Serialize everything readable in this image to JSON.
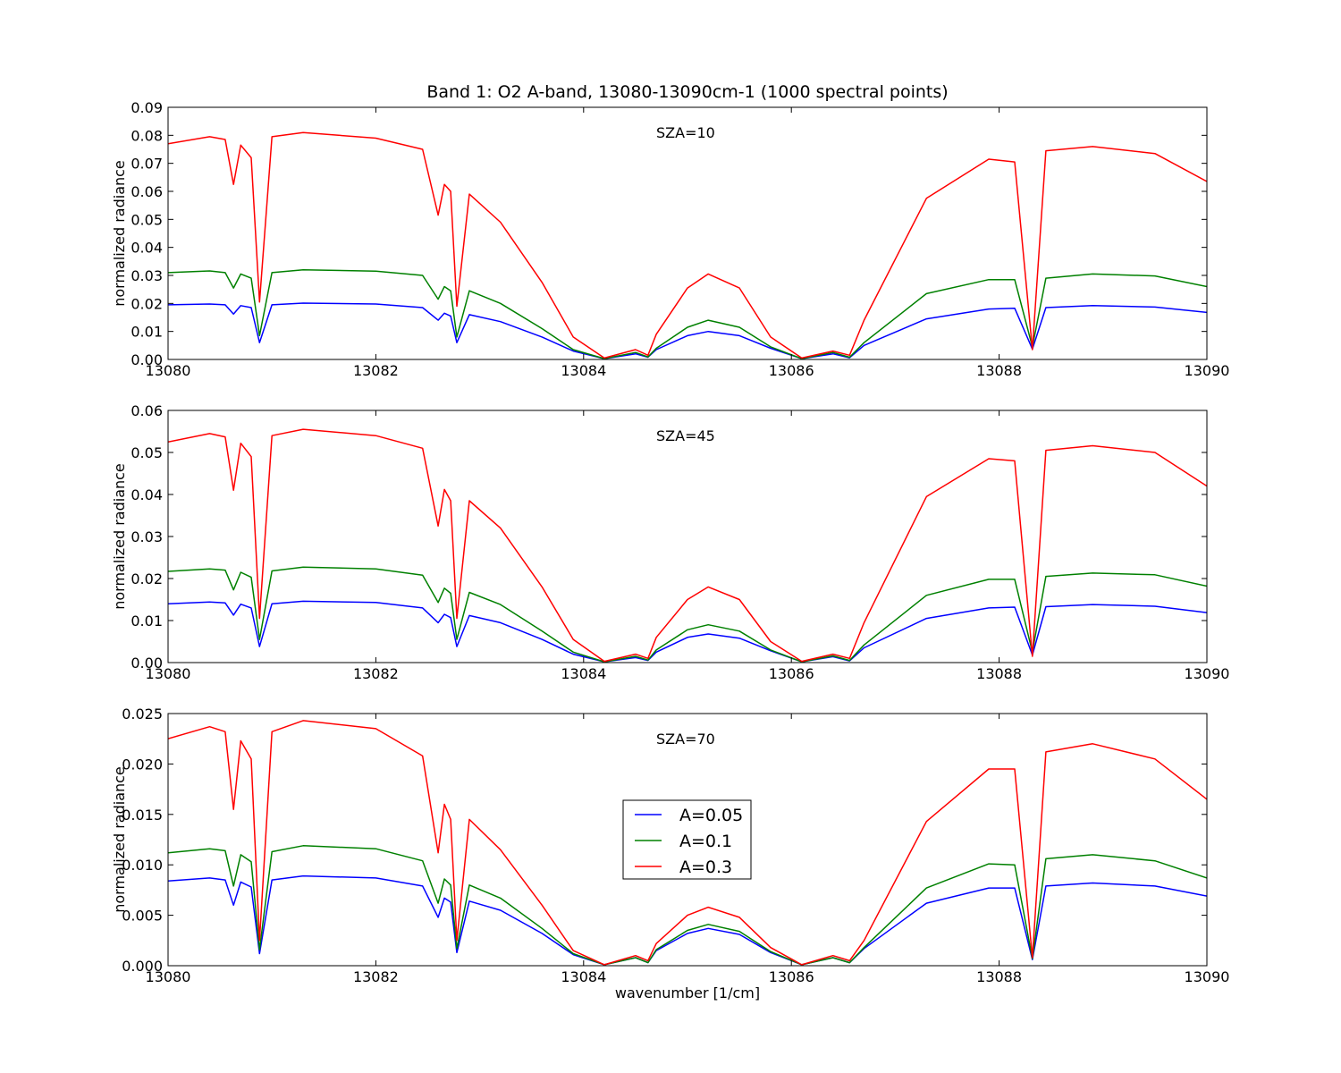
{
  "figure": {
    "title": "Band 1: O2 A-band, 13080-13090cm-1 (1000 spectral points)",
    "xlabel": "wavenumber [1/cm]",
    "ylabel": "normalized radiance"
  },
  "legend": {
    "placement": "center (bottom panel)",
    "entries": [
      {
        "label": "A=0.05",
        "color": "#0000ff"
      },
      {
        "label": "A=0.1",
        "color": "#008000"
      },
      {
        "label": "A=0.3",
        "color": "#ff0000"
      }
    ]
  },
  "chart_data": [
    {
      "type": "line",
      "annotation": "SZA=10",
      "xlim": [
        13080,
        13090
      ],
      "ylim": [
        0,
        0.09
      ],
      "xticks": [
        "13080",
        "13082",
        "13084",
        "13086",
        "13088",
        "13090"
      ],
      "yticks": [
        "0.00",
        "0.01",
        "0.02",
        "0.03",
        "0.04",
        "0.05",
        "0.06",
        "0.07",
        "0.08",
        "0.09"
      ],
      "x": [
        13080,
        13080.4,
        13080.55,
        13080.63,
        13080.7,
        13080.8,
        13080.88,
        13081.0,
        13081.3,
        13082.0,
        13082.45,
        13082.6,
        13082.66,
        13082.72,
        13082.78,
        13082.9,
        13083.2,
        13083.6,
        13083.9,
        13084.2,
        13084.5,
        13084.62,
        13084.7,
        13085.0,
        13085.2,
        13085.5,
        13085.8,
        13086.1,
        13086.4,
        13086.56,
        13086.7,
        13087.3,
        13087.9,
        13088.15,
        13088.32,
        13088.45,
        13088.9,
        13089.5,
        13090
      ],
      "series": [
        {
          "name": "A=0.05",
          "color": "#0000ff",
          "values": [
            0.0195,
            0.0198,
            0.0195,
            0.0162,
            0.0192,
            0.0185,
            0.006,
            0.0195,
            0.0201,
            0.0198,
            0.0185,
            0.014,
            0.0165,
            0.0155,
            0.006,
            0.016,
            0.0135,
            0.008,
            0.003,
            0.0003,
            0.002,
            0.0008,
            0.0035,
            0.0085,
            0.01,
            0.0085,
            0.004,
            0.0003,
            0.002,
            0.0006,
            0.005,
            0.0145,
            0.018,
            0.0183,
            0.0037,
            0.0185,
            0.0192,
            0.0187,
            0.0168
          ]
        },
        {
          "name": "A=0.1",
          "color": "#008000",
          "values": [
            0.031,
            0.0316,
            0.031,
            0.0255,
            0.0305,
            0.029,
            0.0085,
            0.031,
            0.032,
            0.0315,
            0.03,
            0.0215,
            0.026,
            0.0245,
            0.008,
            0.0245,
            0.02,
            0.011,
            0.0035,
            0.0003,
            0.0025,
            0.0009,
            0.004,
            0.0115,
            0.014,
            0.0115,
            0.0045,
            0.0003,
            0.0025,
            0.0008,
            0.006,
            0.0235,
            0.0285,
            0.0285,
            0.0045,
            0.029,
            0.0305,
            0.0298,
            0.026
          ]
        },
        {
          "name": "A=0.3",
          "color": "#ff0000",
          "values": [
            0.077,
            0.0795,
            0.0785,
            0.0625,
            0.0765,
            0.072,
            0.0205,
            0.0795,
            0.081,
            0.079,
            0.075,
            0.0515,
            0.0625,
            0.06,
            0.019,
            0.059,
            0.049,
            0.0275,
            0.008,
            0.0005,
            0.0035,
            0.0015,
            0.009,
            0.0255,
            0.0305,
            0.0255,
            0.008,
            0.0005,
            0.003,
            0.0015,
            0.014,
            0.0575,
            0.0715,
            0.0705,
            0.0035,
            0.0745,
            0.076,
            0.0735,
            0.0635
          ]
        }
      ]
    },
    {
      "type": "line",
      "annotation": "SZA=45",
      "xlim": [
        13080,
        13090
      ],
      "ylim": [
        0,
        0.06
      ],
      "xticks": [
        "13080",
        "13082",
        "13084",
        "13086",
        "13088",
        "13090"
      ],
      "yticks": [
        "0.00",
        "0.01",
        "0.02",
        "0.03",
        "0.04",
        "0.05",
        "0.06"
      ],
      "x": [
        13080,
        13080.4,
        13080.55,
        13080.63,
        13080.7,
        13080.8,
        13080.88,
        13081.0,
        13081.3,
        13082.0,
        13082.45,
        13082.6,
        13082.66,
        13082.72,
        13082.78,
        13082.9,
        13083.2,
        13083.6,
        13083.9,
        13084.2,
        13084.5,
        13084.62,
        13084.7,
        13085.0,
        13085.2,
        13085.5,
        13085.8,
        13086.1,
        13086.4,
        13086.56,
        13086.7,
        13087.3,
        13087.9,
        13088.15,
        13088.32,
        13088.45,
        13088.9,
        13089.5,
        13090
      ],
      "series": [
        {
          "name": "A=0.05",
          "color": "#0000ff",
          "values": [
            0.014,
            0.0144,
            0.0142,
            0.0113,
            0.0139,
            0.013,
            0.0038,
            0.014,
            0.0146,
            0.0143,
            0.013,
            0.0095,
            0.0115,
            0.0107,
            0.0038,
            0.0112,
            0.0095,
            0.0055,
            0.002,
            0.0002,
            0.0012,
            0.0005,
            0.0025,
            0.006,
            0.0068,
            0.0058,
            0.0028,
            0.0002,
            0.0014,
            0.0004,
            0.0035,
            0.0105,
            0.013,
            0.0132,
            0.0018,
            0.0133,
            0.0138,
            0.0134,
            0.0119
          ]
        },
        {
          "name": "A=0.1",
          "color": "#008000",
          "values": [
            0.0217,
            0.0223,
            0.022,
            0.0173,
            0.0215,
            0.0203,
            0.0055,
            0.0218,
            0.0227,
            0.0223,
            0.0208,
            0.0143,
            0.0177,
            0.0165,
            0.0055,
            0.0167,
            0.0138,
            0.0075,
            0.0025,
            0.0002,
            0.0015,
            0.0006,
            0.003,
            0.0078,
            0.009,
            0.0075,
            0.003,
            0.0002,
            0.0016,
            0.0005,
            0.0042,
            0.016,
            0.0198,
            0.0198,
            0.0025,
            0.0205,
            0.0213,
            0.0209,
            0.0182
          ]
        },
        {
          "name": "A=0.3",
          "color": "#ff0000",
          "values": [
            0.0525,
            0.0545,
            0.0537,
            0.041,
            0.0522,
            0.049,
            0.0105,
            0.054,
            0.0555,
            0.054,
            0.051,
            0.0325,
            0.0412,
            0.0385,
            0.0105,
            0.0385,
            0.032,
            0.018,
            0.0055,
            0.0003,
            0.002,
            0.001,
            0.006,
            0.015,
            0.018,
            0.015,
            0.005,
            0.0003,
            0.002,
            0.001,
            0.0095,
            0.0395,
            0.0485,
            0.048,
            0.0015,
            0.0505,
            0.0516,
            0.05,
            0.042
          ]
        }
      ]
    },
    {
      "type": "line",
      "annotation": "SZA=70",
      "xlim": [
        13080,
        13090
      ],
      "ylim": [
        0,
        0.025
      ],
      "xticks": [
        "13080",
        "13082",
        "13084",
        "13086",
        "13088",
        "13090"
      ],
      "yticks": [
        "0.000",
        "0.005",
        "0.010",
        "0.015",
        "0.020",
        "0.025"
      ],
      "x": [
        13080,
        13080.4,
        13080.55,
        13080.63,
        13080.7,
        13080.8,
        13080.88,
        13081.0,
        13081.3,
        13082.0,
        13082.45,
        13082.6,
        13082.66,
        13082.72,
        13082.78,
        13082.9,
        13083.2,
        13083.6,
        13083.9,
        13084.2,
        13084.5,
        13084.62,
        13084.7,
        13085.0,
        13085.2,
        13085.5,
        13085.8,
        13086.1,
        13086.4,
        13086.56,
        13086.7,
        13087.3,
        13087.9,
        13088.15,
        13088.32,
        13088.45,
        13088.9,
        13089.5,
        13090
      ],
      "series": [
        {
          "name": "A=0.05",
          "color": "#0000ff",
          "values": [
            0.0084,
            0.0087,
            0.0085,
            0.006,
            0.0083,
            0.0078,
            0.0012,
            0.0085,
            0.0089,
            0.0087,
            0.0079,
            0.0048,
            0.0067,
            0.0063,
            0.0013,
            0.0064,
            0.0055,
            0.0032,
            0.0011,
            0.0001,
            0.0008,
            0.0003,
            0.0015,
            0.0032,
            0.0037,
            0.0031,
            0.0013,
            0.0001,
            0.0008,
            0.0003,
            0.0017,
            0.0062,
            0.0077,
            0.0077,
            0.0006,
            0.0079,
            0.0082,
            0.0079,
            0.0069
          ]
        },
        {
          "name": "A=0.1",
          "color": "#008000",
          "values": [
            0.0112,
            0.0116,
            0.0114,
            0.0079,
            0.011,
            0.0103,
            0.0016,
            0.0113,
            0.0119,
            0.0116,
            0.0104,
            0.0062,
            0.0086,
            0.008,
            0.0017,
            0.008,
            0.0067,
            0.0037,
            0.0012,
            0.0001,
            0.0008,
            0.0003,
            0.0016,
            0.0035,
            0.0041,
            0.0034,
            0.0014,
            0.0001,
            0.0008,
            0.0003,
            0.0018,
            0.0077,
            0.0101,
            0.01,
            0.0007,
            0.0106,
            0.011,
            0.0104,
            0.0087
          ]
        },
        {
          "name": "A=0.3",
          "color": "#ff0000",
          "values": [
            0.0225,
            0.0237,
            0.0232,
            0.0155,
            0.0223,
            0.0205,
            0.0025,
            0.0232,
            0.0243,
            0.0235,
            0.0208,
            0.0112,
            0.016,
            0.0145,
            0.0025,
            0.0145,
            0.0115,
            0.006,
            0.0015,
            0.0001,
            0.001,
            0.0005,
            0.0022,
            0.005,
            0.0058,
            0.0048,
            0.0018,
            0.0001,
            0.001,
            0.0005,
            0.0025,
            0.0143,
            0.0195,
            0.0195,
            0.0008,
            0.0212,
            0.022,
            0.0205,
            0.0165
          ]
        }
      ]
    }
  ]
}
